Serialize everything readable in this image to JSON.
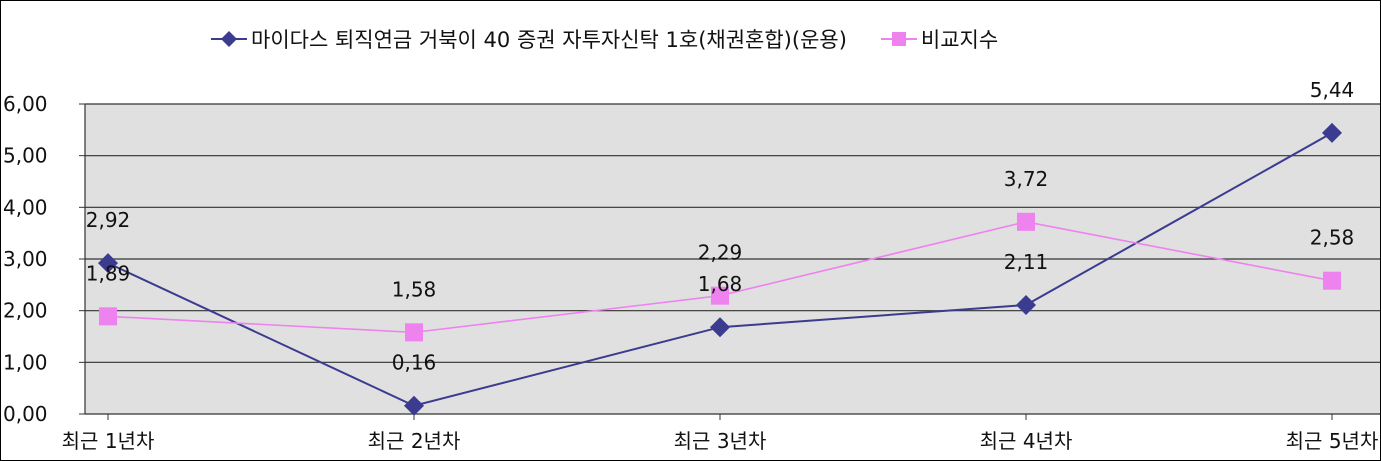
{
  "chart_data": {
    "type": "line",
    "categories": [
      "최근 1년차",
      "최근 2년차",
      "최근 3년차",
      "최근 4년차",
      "최근 5년차"
    ],
    "series": [
      {
        "name": "마이다스 퇴직연금 거북이 40 증권 자투자신탁 1호(채권혼합)(운용)",
        "values": [
          2.92,
          0.16,
          1.68,
          2.11,
          5.44
        ],
        "labels": [
          "2,92",
          "0,16",
          "1,68",
          "2,11",
          "5,44"
        ],
        "color": "#3b3b8f",
        "marker": "diamond"
      },
      {
        "name": "비교지수",
        "values": [
          1.89,
          1.58,
          2.29,
          3.72,
          2.58
        ],
        "labels": [
          "1,89",
          "1,58",
          "2,29",
          "3,72",
          "2,58"
        ],
        "color": "#ee82ee",
        "marker": "square"
      }
    ],
    "y_ticks": [
      "0,00",
      "1,00",
      "2,00",
      "3,00",
      "4,00",
      "5,00",
      "6,00"
    ],
    "ylim": [
      0,
      6
    ],
    "grid": true,
    "plot_background": "#e0e0e0",
    "legend_position": "top-center"
  }
}
